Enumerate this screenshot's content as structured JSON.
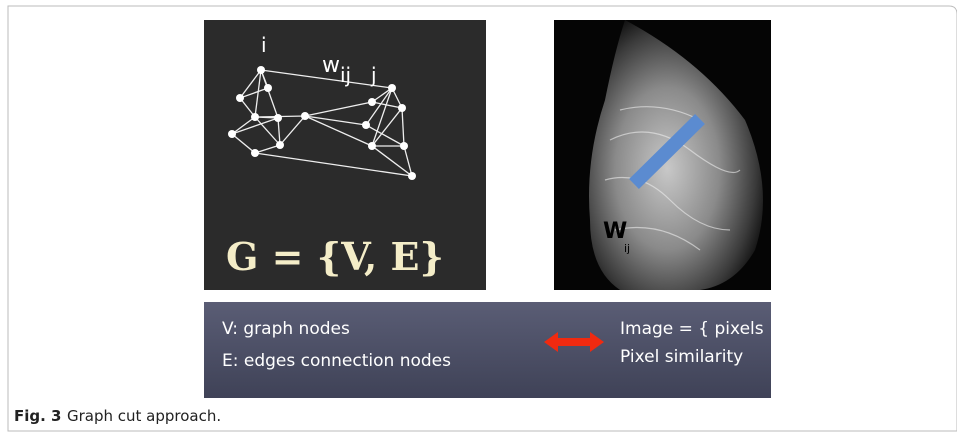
{
  "figure": {
    "graph_panel": {
      "node_i": "i",
      "weight": "w",
      "weight_sub": "ij",
      "node_j": "j",
      "formula": "G = {V, E}"
    },
    "image_panel": {
      "weight": "W",
      "weight_sub": "ij"
    },
    "legend": {
      "left": [
        "V: graph nodes",
        "E: edges connection nodes"
      ],
      "right": [
        "Image = { pixels }",
        "Pixel similarity"
      ]
    },
    "caption": {
      "label": "Fig. 3",
      "text": "Graph cut approach."
    }
  }
}
